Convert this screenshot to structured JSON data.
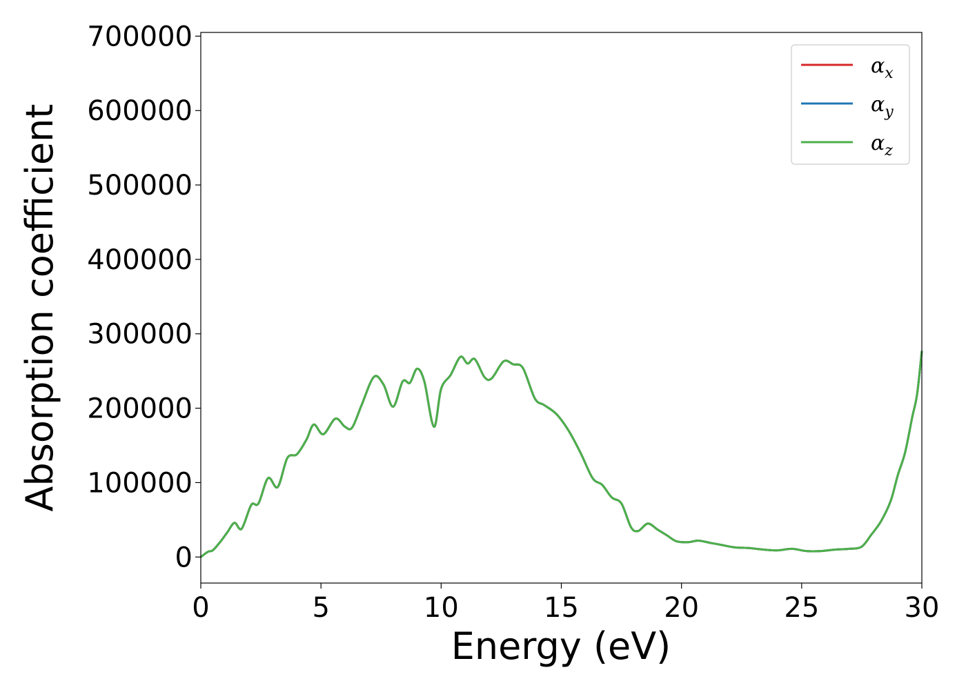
{
  "chart_data": {
    "type": "line",
    "xlabel": "Energy (eV)",
    "ylabel": "Absorption coefficient",
    "xlim": [
      0,
      30
    ],
    "ylim": [
      -35000,
      705000
    ],
    "xticks": [
      0,
      5,
      10,
      15,
      20,
      25,
      30
    ],
    "yticks": [
      0,
      100000,
      200000,
      300000,
      400000,
      500000,
      600000,
      700000
    ],
    "grid": false,
    "legend_position": "top-right",
    "legend": [
      {
        "symbol": "α",
        "sub": "x",
        "color": "#d62728"
      },
      {
        "symbol": "α",
        "sub": "y",
        "color": "#1f77b4"
      },
      {
        "symbol": "α",
        "sub": "z",
        "color": "#4daf4a"
      }
    ],
    "x": [
      0,
      0.3,
      0.5,
      0.8,
      1.1,
      1.4,
      1.7,
      2.1,
      2.4,
      2.8,
      3.2,
      3.6,
      4.0,
      4.4,
      4.7,
      5.1,
      5.6,
      6.0,
      6.3,
      6.7,
      7.2,
      7.6,
      8.0,
      8.4,
      8.7,
      9.0,
      9.3,
      9.7,
      10.0,
      10.4,
      10.8,
      11.1,
      11.4,
      11.8,
      12.1,
      12.6,
      13.0,
      13.4,
      13.9,
      14.3,
      14.8,
      15.3,
      15.8,
      16.3,
      16.7,
      17.1,
      17.5,
      17.9,
      18.2,
      18.6,
      19.0,
      19.4,
      19.8,
      20.3,
      20.7,
      21.2,
      21.7,
      22.2,
      22.8,
      23.4,
      24.0,
      24.6,
      25.2,
      25.8,
      26.4,
      27.0,
      27.5,
      27.9,
      28.3,
      28.7,
      29.0,
      29.3,
      29.6,
      29.8,
      30.0
    ],
    "series": [
      {
        "color": "#d62728",
        "values": [
          0,
          7000,
          9000,
          20000,
          33000,
          46000,
          38000,
          70000,
          72000,
          106000,
          94000,
          133000,
          138000,
          158000,
          178000,
          165000,
          186000,
          175000,
          174000,
          205000,
          242000,
          232000,
          202000,
          236000,
          234000,
          253000,
          236000,
          175000,
          226000,
          245000,
          269000,
          260000,
          266000,
          242000,
          240000,
          263000,
          259000,
          254000,
          213000,
          204000,
          192000,
          170000,
          140000,
          106000,
          97000,
          80000,
          72000,
          40000,
          35000,
          45000,
          37000,
          29000,
          21000,
          20000,
          22000,
          19000,
          16000,
          13000,
          12000,
          10000,
          9000,
          11000,
          8000,
          8000,
          10000,
          11000,
          14000,
          30000,
          48000,
          75000,
          110000,
          140000,
          188000,
          218000,
          277000
        ]
      },
      {
        "color": "#1f77b4",
        "values": [
          0,
          7000,
          9000,
          20000,
          33000,
          46000,
          38000,
          70000,
          72000,
          106000,
          94000,
          133000,
          138000,
          158000,
          178000,
          165000,
          186000,
          175000,
          174000,
          205000,
          242000,
          232000,
          202000,
          236000,
          234000,
          253000,
          236000,
          175000,
          226000,
          245000,
          269000,
          260000,
          266000,
          242000,
          240000,
          263000,
          259000,
          254000,
          213000,
          204000,
          192000,
          170000,
          140000,
          106000,
          97000,
          80000,
          72000,
          40000,
          35000,
          45000,
          37000,
          29000,
          21000,
          20000,
          22000,
          19000,
          16000,
          13000,
          12000,
          10000,
          9000,
          11000,
          8000,
          8000,
          10000,
          11000,
          14000,
          30000,
          48000,
          75000,
          110000,
          140000,
          188000,
          218000,
          277000
        ]
      },
      {
        "color": "#4daf4a",
        "values": [
          0,
          7000,
          9000,
          20000,
          33000,
          46000,
          38000,
          70000,
          72000,
          106000,
          94000,
          133000,
          138000,
          158000,
          178000,
          165000,
          186000,
          175000,
          174000,
          205000,
          242000,
          232000,
          202000,
          236000,
          234000,
          253000,
          236000,
          175000,
          226000,
          245000,
          269000,
          260000,
          266000,
          242000,
          240000,
          263000,
          259000,
          254000,
          213000,
          204000,
          192000,
          170000,
          140000,
          106000,
          97000,
          80000,
          72000,
          40000,
          35000,
          45000,
          37000,
          29000,
          21000,
          20000,
          22000,
          19000,
          16000,
          13000,
          12000,
          10000,
          9000,
          11000,
          8000,
          8000,
          10000,
          11000,
          14000,
          30000,
          48000,
          75000,
          110000,
          140000,
          188000,
          218000,
          277000
        ]
      }
    ]
  }
}
